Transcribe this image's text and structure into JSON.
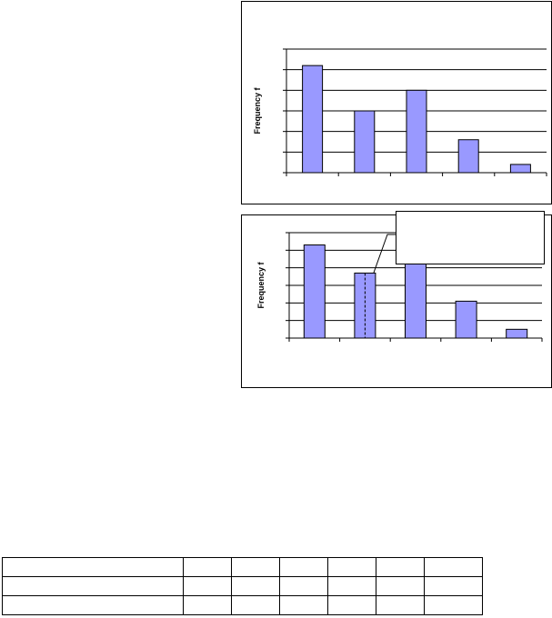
{
  "chart_data": [
    {
      "type": "bar",
      "categories": [
        "",
        "",
        "",
        "",
        ""
      ],
      "values": [
        5.2,
        3.0,
        4.0,
        1.6,
        0.4
      ],
      "ylabel": "Frequency f",
      "ylim": [
        0,
        6
      ],
      "grid": true,
      "bar_color": "#9999ff"
    },
    {
      "type": "bar",
      "categories": [
        "",
        "",
        "",
        "",
        ""
      ],
      "values": [
        5.3,
        3.7,
        4.3,
        2.1,
        0.5
      ],
      "ylabel": "Frequency f",
      "ylim": [
        0,
        6
      ],
      "grid": true,
      "bar_color": "#9999ff",
      "annotation": ""
    }
  ],
  "table": {
    "rows": [
      [
        "",
        "",
        "",
        "",
        "",
        "",
        ""
      ],
      [
        "",
        "",
        "",
        "",
        "",
        "",
        ""
      ],
      [
        "",
        "",
        "",
        "",
        "",
        "",
        ""
      ]
    ]
  }
}
